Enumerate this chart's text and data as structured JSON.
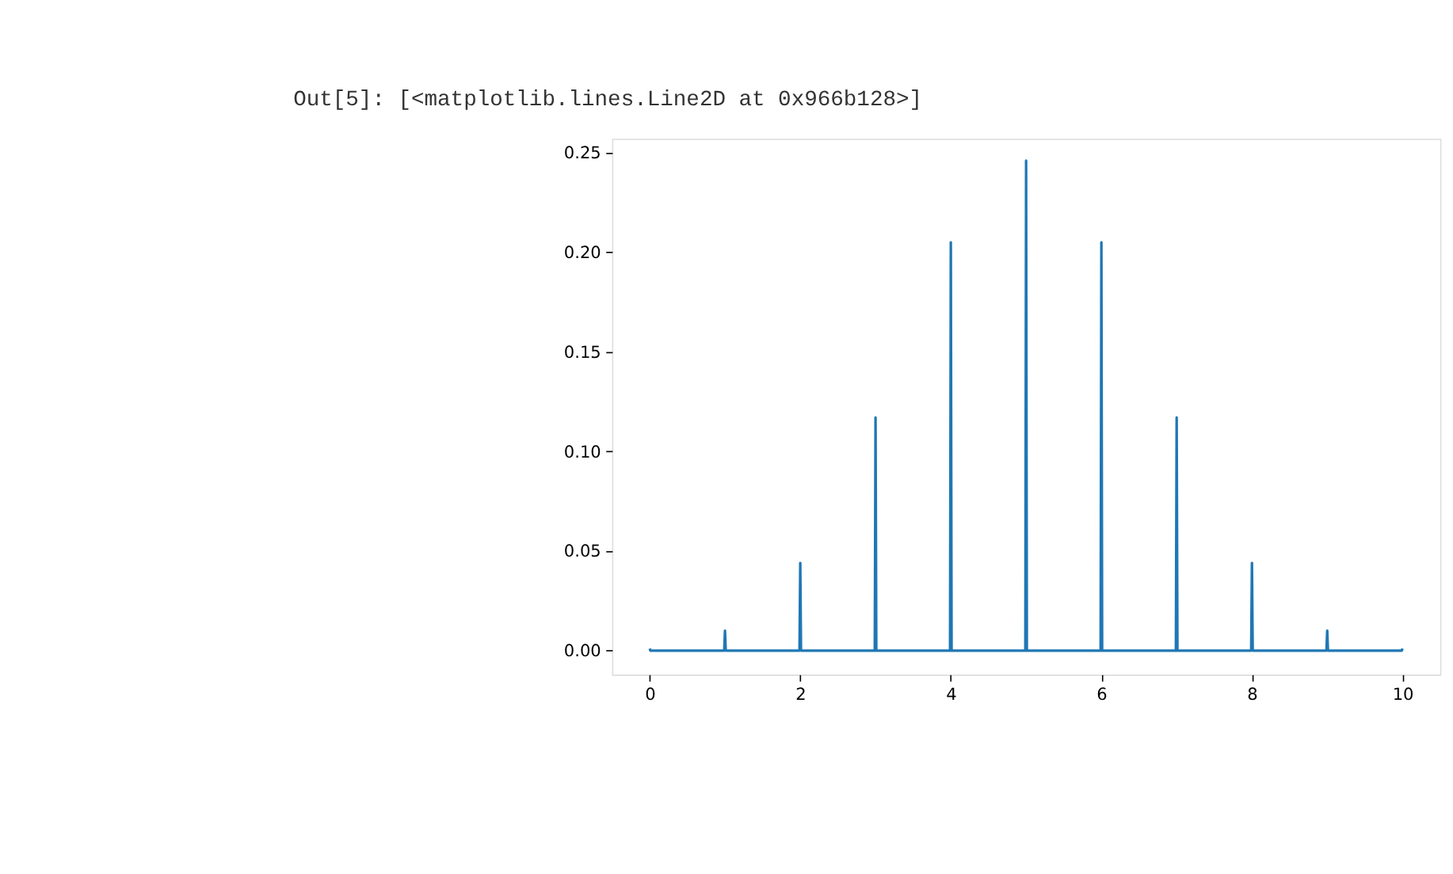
{
  "chart_data": {
    "type": "line",
    "annotations": [
      "Out[5]: [<matplotlib.lines.Line2D at 0x966b128>]"
    ],
    "series": [
      {
        "color": "#1f77b4",
        "x": [
          0,
          0.01,
          0.99,
          1,
          1.01,
          1.99,
          2,
          2.01,
          2.99,
          3,
          3.01,
          3.99,
          4,
          4.01,
          4.99,
          5,
          5.01,
          5.99,
          6,
          6.01,
          6.99,
          7,
          7.01,
          7.99,
          8,
          8.01,
          8.99,
          9,
          9.01,
          9.99,
          10
        ],
        "values": [
          0.001,
          0,
          0,
          0.01,
          0,
          0,
          0.044,
          0,
          0,
          0.117,
          0,
          0,
          0.205,
          0,
          0,
          0.246,
          0,
          0,
          0.205,
          0,
          0,
          0.117,
          0,
          0,
          0.044,
          0,
          0,
          0.01,
          0,
          0,
          0.001
        ]
      }
    ],
    "xlim": [
      -0.5,
      10.5
    ],
    "ylim": [
      -0.012,
      0.257
    ],
    "xticks": [
      0,
      2,
      4,
      6,
      8,
      10
    ],
    "yticks": [
      {
        "value": 0,
        "label": "0.00"
      },
      {
        "value": 0.05,
        "label": "0.05"
      },
      {
        "value": 0.1,
        "label": "0.10"
      },
      {
        "value": 0.15,
        "label": "0.15"
      },
      {
        "value": 0.2,
        "label": "0.20"
      },
      {
        "value": 0.25,
        "label": "0.25"
      }
    ],
    "grid": false,
    "marker": "none",
    "line_style": "solid"
  }
}
